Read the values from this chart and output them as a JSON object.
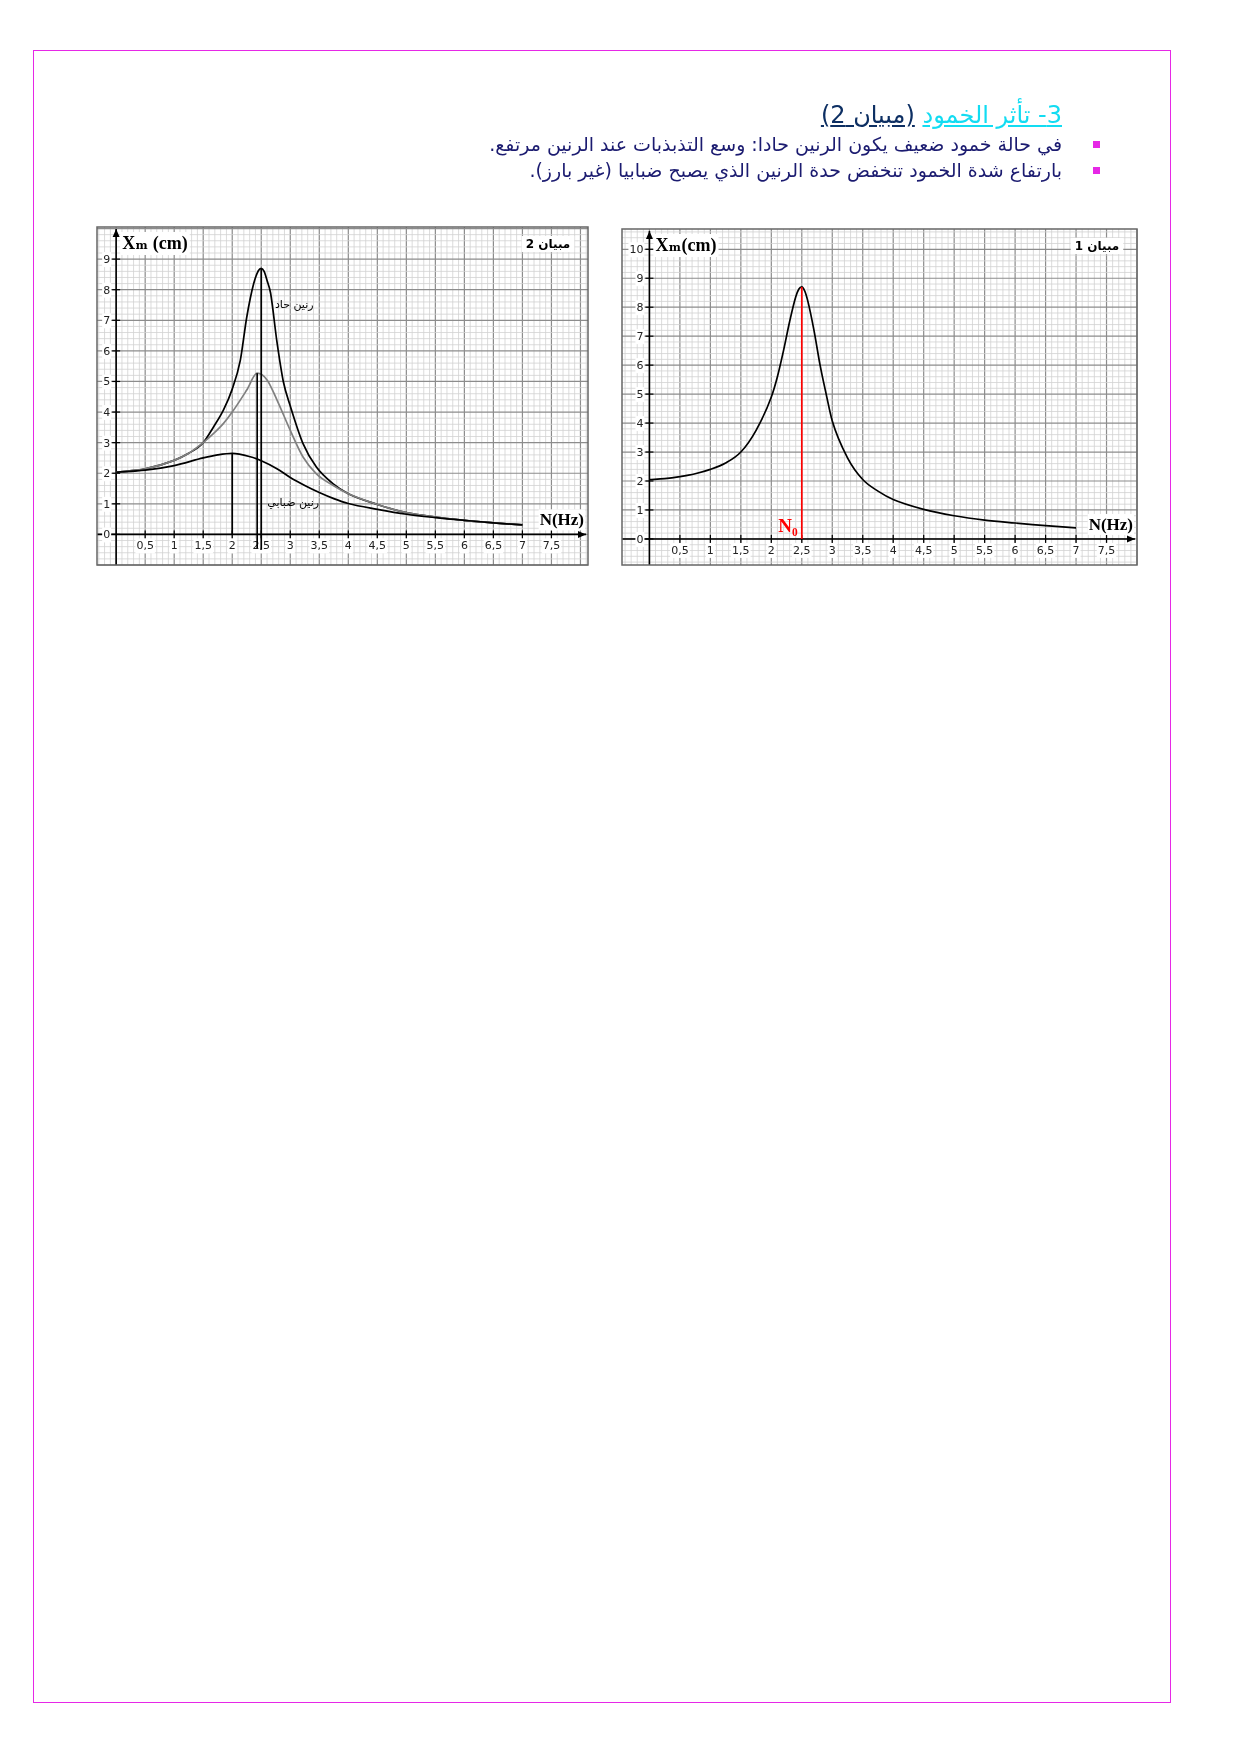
{
  "chart_data": [
    {
      "type": "other",
      "title": "3- تأثر الخمود",
      "subtitle": "(مبيان 2)",
      "annotations": [
        "في حالة خمود ضعيف يكون الرنين حادا: وسع التذبذبات عند الرنين مرتفع.",
        "بارتفاع شدة الخمود تنخفض حدة الرنين الذي يصبح ضبابيا (غير بارز)."
      ]
    },
    {
      "type": "line",
      "title": "مبيان 1",
      "xlabel": "N(Hz)",
      "ylabel": "Xₘ(cm)",
      "xlim": [
        -0.45,
        8.0
      ],
      "ylim": [
        -0.9,
        10.7
      ],
      "xticks": [
        {
          "value": 0.5,
          "label": "0,5"
        },
        1,
        {
          "value": 1.5,
          "label": "1,5"
        },
        2,
        {
          "value": 2.5,
          "label": "2,5"
        },
        3,
        {
          "value": 3.5,
          "label": "3,5"
        },
        4,
        {
          "value": 4.5,
          "label": "4,5"
        },
        5,
        {
          "value": 5.5,
          "label": "5,5"
        },
        6,
        {
          "value": 6.5,
          "label": "6,5"
        },
        7,
        {
          "value": 7.5,
          "label": "7,5"
        }
      ],
      "yticks": [
        0,
        1,
        2,
        3,
        4,
        5,
        6,
        7,
        8,
        9,
        10
      ],
      "grid": true,
      "series": [
        {
          "color": "#000000",
          "x": [
            0,
            0.25,
            0.5,
            0.75,
            1,
            1.25,
            1.5,
            1.75,
            2,
            2.1,
            2.2,
            2.3,
            2.4,
            2.45,
            2.5,
            2.55,
            2.6,
            2.7,
            2.8,
            2.9,
            3,
            3.25,
            3.5,
            3.75,
            4,
            4.5,
            5,
            5.5,
            6,
            6.5,
            7
          ],
          "values": [
            2.05,
            2.08,
            2.15,
            2.25,
            2.4,
            2.62,
            3.0,
            3.75,
            4.9,
            5.6,
            6.5,
            7.5,
            8.35,
            8.62,
            8.7,
            8.55,
            8.2,
            7.2,
            6.0,
            5.0,
            4.07,
            2.8,
            2.05,
            1.65,
            1.36,
            1.02,
            0.8,
            0.65,
            0.55,
            0.46,
            0.38
          ]
        },
        {
          "name": "N₀",
          "color": "#ff0000",
          "x": [
            2.5,
            2.5
          ],
          "values": [
            0,
            8.7
          ]
        }
      ]
    },
    {
      "type": "line",
      "title": "مبيان 2",
      "xlabel": "N(Hz)",
      "ylabel": "Xₘ (cm)",
      "xlim": [
        -0.33,
        8.13
      ],
      "ylim": [
        -1.0,
        10.05
      ],
      "xticks": [
        {
          "value": 0.5,
          "label": "0,5"
        },
        1,
        {
          "value": 1.5,
          "label": "1,5"
        },
        2,
        {
          "value": 2.5,
          "label": "2,5"
        },
        3,
        {
          "value": 3.5,
          "label": "3,5"
        },
        4,
        {
          "value": 4.5,
          "label": "4,5"
        },
        5,
        {
          "value": 5.5,
          "label": "5,5"
        },
        6,
        {
          "value": 6.5,
          "label": "6,5"
        },
        7,
        {
          "value": 7.5,
          "label": "7,5"
        }
      ],
      "yticks": [
        0,
        1,
        2,
        3,
        4,
        5,
        6,
        7,
        8,
        9
      ],
      "grid": true,
      "series": [
        {
          "name": "رنين حاد",
          "color": "#000000",
          "x": [
            0,
            0.5,
            1,
            1.25,
            1.5,
            1.68,
            1.85,
            2,
            2.14,
            2.25,
            2.37,
            2.45,
            2.5,
            2.55,
            2.6,
            2.66,
            2.77,
            2.88,
            3,
            3.22,
            3.45,
            3.74,
            4,
            4.5,
            5,
            5.5,
            6,
            6.5,
            7
          ],
          "values": [
            2.03,
            2.14,
            2.42,
            2.65,
            3.0,
            3.52,
            4.07,
            4.75,
            5.7,
            7.1,
            8.2,
            8.62,
            8.7,
            8.6,
            8.3,
            7.9,
            6.3,
            5.0,
            4.2,
            2.97,
            2.2,
            1.65,
            1.33,
            0.98,
            0.71,
            0.57,
            0.46,
            0.38,
            0.31
          ]
        },
        {
          "color": "#808080",
          "x": [
            0,
            0.5,
            1,
            1.25,
            1.5,
            1.68,
            1.85,
            2,
            2.25,
            2.43,
            2.6,
            2.77,
            3,
            3.22,
            3.45,
            3.74,
            4,
            4.5,
            5,
            5.5,
            6,
            6.5,
            7
          ],
          "values": [
            2.03,
            2.14,
            2.42,
            2.65,
            3.0,
            3.3,
            3.63,
            4.0,
            4.72,
            5.27,
            5.05,
            4.4,
            3.4,
            2.53,
            1.98,
            1.6,
            1.33,
            0.98,
            0.71,
            0.57,
            0.46,
            0.38,
            0.31
          ]
        },
        {
          "name": "رنين ضبابي",
          "color": "#000000",
          "x": [
            0,
            0.5,
            1,
            1.5,
            1.75,
            2,
            2.31,
            2.5,
            2.77,
            3,
            3.25,
            3.5,
            3.75,
            4,
            4.5,
            5,
            5.5,
            6,
            6.5,
            7
          ],
          "values": [
            2.03,
            2.1,
            2.25,
            2.5,
            2.6,
            2.65,
            2.54,
            2.41,
            2.15,
            1.86,
            1.6,
            1.37,
            1.17,
            1.01,
            0.82,
            0.66,
            0.55,
            0.46,
            0.38,
            0.31
          ]
        },
        {
          "color": "#000000",
          "x": [
            2.5,
            2.5
          ],
          "values": [
            -0.5,
            8.7
          ]
        },
        {
          "color": "#000000",
          "x": [
            2.43,
            2.43
          ],
          "values": [
            -0.45,
            5.27
          ]
        },
        {
          "color": "#000000",
          "x": [
            2,
            2
          ],
          "values": [
            0,
            2.65
          ]
        }
      ]
    }
  ]
}
